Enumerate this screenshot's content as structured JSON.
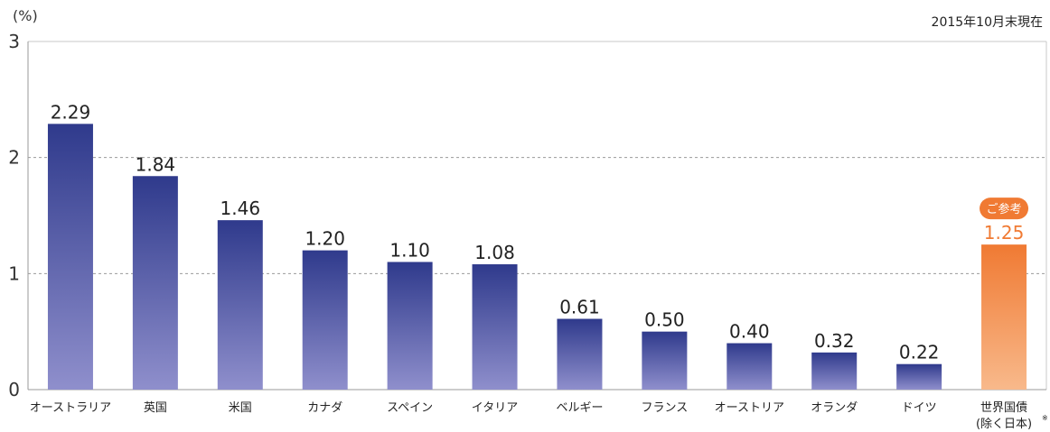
{
  "unit_label": "(%)",
  "date_note": "2015年10月末現在",
  "colors": {
    "bar_top": "#2f3a8c",
    "bar_bottom": "#8f8fcc",
    "ref_top": "#f07a33",
    "ref_bottom": "#f8b98b",
    "ref_badge": "#f07a33"
  },
  "chart_data": {
    "type": "bar",
    "title": "",
    "xlabel": "",
    "ylabel": "(%)",
    "ylim": [
      0,
      3
    ],
    "yticks": [
      "0",
      "1",
      "2",
      "3"
    ],
    "grid": "dashed horizontal at 1 and 2",
    "categories": [
      "オーストラリア",
      "英国",
      "米国",
      "カナダ",
      "スペイン",
      "イタリア",
      "ベルギー",
      "フランス",
      "オーストリア",
      "オランダ",
      "ドイツ",
      "世界国債"
    ],
    "category_sublabels": [
      "",
      "",
      "",
      "",
      "",
      "",
      "",
      "",
      "",
      "",
      "",
      "(除く日本)"
    ],
    "footnote_mark": "※",
    "values": [
      2.29,
      1.84,
      1.46,
      1.2,
      1.1,
      1.08,
      0.61,
      0.5,
      0.4,
      0.32,
      0.22,
      1.25
    ],
    "value_labels": [
      "2.29",
      "1.84",
      "1.46",
      "1.20",
      "1.10",
      "1.08",
      "0.61",
      "0.50",
      "0.40",
      "0.32",
      "0.22",
      "1.25"
    ],
    "reference_index": 11,
    "reference_badge": "ご参考"
  }
}
